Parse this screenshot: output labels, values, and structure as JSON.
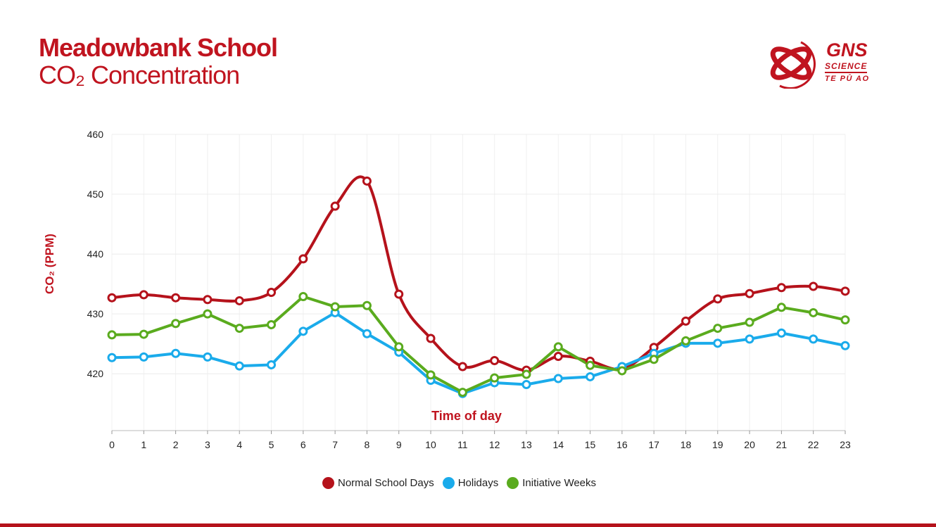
{
  "header": {
    "title": "Meadowbank School",
    "subtitle": "CO₂ Concentration"
  },
  "logo": {
    "name": "GNS",
    "line2": "SCIENCE",
    "line3": "TE PŪ AO"
  },
  "chart_data": {
    "type": "line",
    "title": "Meadowbank School CO₂ Concentration",
    "xlabel": "Time of day",
    "ylabel": "CO₂ (PPM)",
    "x": [
      0,
      1,
      2,
      3,
      4,
      5,
      6,
      7,
      8,
      9,
      10,
      11,
      12,
      13,
      14,
      15,
      16,
      17,
      18,
      19,
      20,
      21,
      22,
      23
    ],
    "xticks": [
      "0",
      "1",
      "2",
      "3",
      "4",
      "5",
      "6",
      "7",
      "8",
      "9",
      "10",
      "11",
      "12",
      "13",
      "14",
      "15",
      "16",
      "17",
      "18",
      "19",
      "20",
      "21",
      "22",
      "23"
    ],
    "yticks": [
      "420",
      "430",
      "440",
      "450",
      "460"
    ],
    "ytick_values": [
      420,
      430,
      440,
      450,
      460
    ],
    "ylim": [
      410.5,
      460
    ],
    "grid": true,
    "legend_position": "bottom-center",
    "series": [
      {
        "name": "Normal School Days",
        "color": "#b5121b",
        "smooth": true,
        "values": [
          432.7,
          433.2,
          432.7,
          432.4,
          432.2,
          433.6,
          439.2,
          448.0,
          452.2,
          433.3,
          425.9,
          421.2,
          422.2,
          420.6,
          422.9,
          422.1,
          420.8,
          424.4,
          428.8,
          432.5,
          433.4,
          434.4,
          434.6,
          433.8
        ]
      },
      {
        "name": "Holidays",
        "color": "#1aabeb",
        "smooth": false,
        "values": [
          422.7,
          422.8,
          423.4,
          422.8,
          421.3,
          421.5,
          427.1,
          430.2,
          426.7,
          423.6,
          418.9,
          416.7,
          418.5,
          418.2,
          419.2,
          419.5,
          421.2,
          423.4,
          425.1,
          425.1,
          425.8,
          426.8,
          425.8,
          424.7
        ]
      },
      {
        "name": "Initiative Weeks",
        "color": "#5aab1e",
        "smooth": false,
        "values": [
          426.5,
          426.6,
          428.4,
          430.0,
          427.6,
          428.2,
          432.9,
          431.2,
          431.4,
          424.5,
          419.8,
          416.9,
          419.3,
          419.9,
          424.5,
          421.4,
          420.5,
          422.4,
          425.5,
          427.6,
          428.6,
          431.1,
          430.2,
          429.0
        ]
      }
    ]
  }
}
